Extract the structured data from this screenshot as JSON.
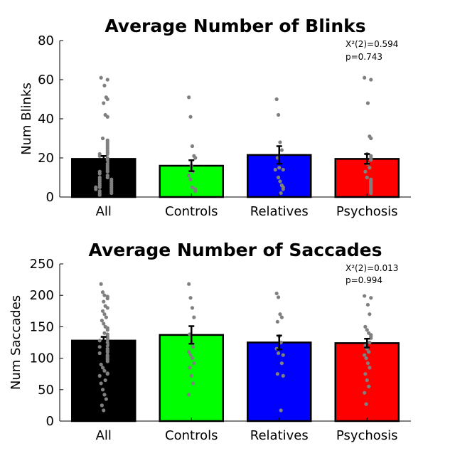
{
  "chart_data": [
    {
      "type": "bar",
      "title": "Average Number of Blinks",
      "xlabel": "",
      "ylabel": "Num Blinks",
      "ylim": [
        0,
        80
      ],
      "yticks": [
        0,
        20,
        40,
        60,
        80
      ],
      "grid": false,
      "categories": [
        "All",
        "Controls",
        "Relatives",
        "Psychosis"
      ],
      "values": [
        19.5,
        16,
        21.5,
        19.5
      ],
      "error": [
        1.5,
        2.8,
        4.5,
        2.5
      ],
      "colors": [
        "#000000",
        "#00ff00",
        "#0000ff",
        "#ff0000"
      ],
      "annotations": [
        "X²(2)=0.594",
        "p=0.743"
      ],
      "points": [
        [
          61,
          60,
          57,
          51,
          50,
          48,
          42,
          41,
          30,
          29,
          28,
          27,
          26,
          25,
          24,
          23,
          22,
          22,
          21,
          20,
          19,
          18,
          17,
          16,
          15,
          14,
          13,
          13,
          12,
          11,
          10,
          10,
          9,
          9,
          8,
          8,
          7,
          7,
          6,
          6,
          5,
          5,
          5,
          4,
          4,
          3,
          3,
          2,
          2,
          1
        ],
        [
          51,
          41,
          26,
          21,
          20,
          16,
          13,
          11,
          9,
          5,
          4,
          3
        ],
        [
          50,
          42,
          28,
          24,
          20,
          15,
          14,
          14,
          10,
          8,
          6,
          5,
          4,
          2
        ],
        [
          61,
          60,
          48,
          31,
          30,
          22,
          21,
          20,
          19,
          17,
          15,
          13,
          10,
          9,
          8,
          7,
          6,
          5,
          4,
          3,
          2
        ]
      ]
    },
    {
      "type": "bar",
      "title": "Average Number of Saccades",
      "xlabel": "",
      "ylabel": "Num Saccades",
      "ylim": [
        0,
        250
      ],
      "yticks": [
        0,
        50,
        100,
        150,
        200,
        250
      ],
      "grid": false,
      "categories": [
        "All",
        "Controls",
        "Relatives",
        "Psychosis"
      ],
      "values": [
        128,
        137,
        125,
        124
      ],
      "error": [
        6,
        14,
        11,
        7
      ],
      "colors": [
        "#000000",
        "#00ff00",
        "#0000ff",
        "#ff0000"
      ],
      "annotations": [
        "X²(2)=0.013",
        "p=0.994"
      ],
      "points": [
        [
          218,
          205,
          200,
          198,
          195,
          190,
          183,
          180,
          175,
          170,
          165,
          160,
          155,
          150,
          148,
          145,
          140,
          138,
          135,
          132,
          130,
          128,
          125,
          122,
          120,
          118,
          115,
          112,
          110,
          108,
          105,
          103,
          100,
          98,
          95,
          90,
          85,
          80,
          76,
          75,
          72,
          65,
          60,
          50,
          42,
          35,
          25,
          17
        ],
        [
          218,
          196,
          180,
          165,
          138,
          125,
          118,
          110,
          105,
          100,
          92,
          85,
          72,
          60,
          42
        ],
        [
          203,
          197,
          170,
          165,
          158,
          135,
          125,
          115,
          108,
          105,
          92,
          75,
          72,
          17
        ],
        [
          199,
          196,
          185,
          170,
          150,
          145,
          140,
          137,
          135,
          132,
          125,
          120,
          115,
          110,
          105,
          100,
          92,
          85,
          75,
          65,
          55,
          45,
          27
        ]
      ]
    }
  ]
}
